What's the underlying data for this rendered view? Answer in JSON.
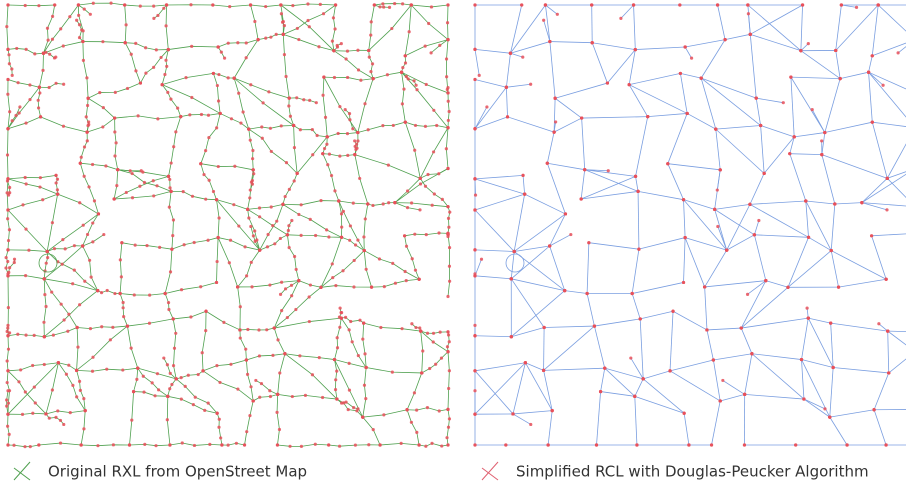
{
  "left_panel": {
    "caption": "Original RXL from OpenStreet Map"
  },
  "right_panel": {
    "caption": "Simplified RCL with Douglas-Peucker Algorithm"
  }
}
